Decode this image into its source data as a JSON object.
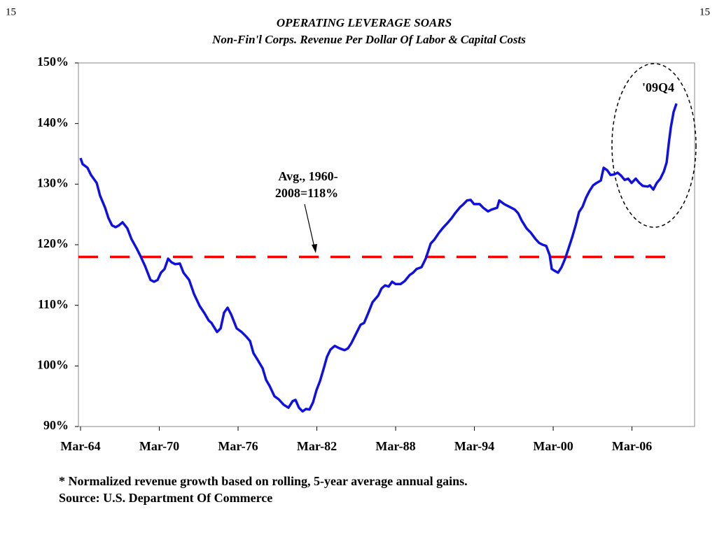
{
  "page_numbers": [
    "15",
    "15"
  ],
  "chart_data": {
    "type": "line",
    "title": "OPERATING LEVERAGE SOARS",
    "subtitle": "Non-Fin'l Corps. Revenue Per Dollar Of Labor & Capital Costs",
    "xlim": [
      1963.84,
      2010.77
    ],
    "ylim": [
      90,
      150
    ],
    "xticks": [
      {
        "value": 1964,
        "label": "Mar-64"
      },
      {
        "value": 1970,
        "label": "Mar-70"
      },
      {
        "value": 1976,
        "label": "Mar-76"
      },
      {
        "value": 1982,
        "label": "Mar-82"
      },
      {
        "value": 1988,
        "label": "Mar-88"
      },
      {
        "value": 1994,
        "label": "Mar-94"
      },
      {
        "value": 2000,
        "label": "Mar-00"
      },
      {
        "value": 2006,
        "label": "Mar-06"
      }
    ],
    "yticks": [
      {
        "value": 90,
        "label": "90%"
      },
      {
        "value": 100,
        "label": "100%"
      },
      {
        "value": 110,
        "label": "110%"
      },
      {
        "value": 120,
        "label": "120%"
      },
      {
        "value": 130,
        "label": "130%"
      },
      {
        "value": 140,
        "label": "140%"
      },
      {
        "value": 150,
        "label": "150%"
      }
    ],
    "series": [
      {
        "color": "#1010e0",
        "x": [
          1964.0,
          1964.16,
          1964.53,
          1964.8,
          1965.23,
          1965.49,
          1965.87,
          1966.13,
          1966.4,
          1966.67,
          1966.93,
          1967.2,
          1967.57,
          1967.89,
          1968.27,
          1968.53,
          1968.91,
          1969.33,
          1969.6,
          1969.87,
          1970.13,
          1970.4,
          1970.67,
          1970.93,
          1971.2,
          1971.57,
          1971.84,
          1972.27,
          1972.64,
          1973.07,
          1973.44,
          1973.76,
          1973.97,
          1974.4,
          1974.67,
          1974.93,
          1975.2,
          1975.47,
          1975.89,
          1976.27,
          1976.64,
          1976.91,
          1977.17,
          1977.49,
          1977.87,
          1978.13,
          1978.4,
          1978.77,
          1979.09,
          1979.47,
          1979.84,
          1980.16,
          1980.37,
          1980.64,
          1980.91,
          1981.17,
          1981.44,
          1981.71,
          1981.97,
          1982.24,
          1982.51,
          1982.77,
          1983.04,
          1983.36,
          1983.73,
          1984.11,
          1984.37,
          1984.64,
          1984.96,
          1985.33,
          1985.6,
          1985.87,
          1986.24,
          1986.67,
          1986.93,
          1987.2,
          1987.47,
          1987.73,
          1988.0,
          1988.37,
          1988.69,
          1989.07,
          1989.33,
          1989.6,
          1989.97,
          1990.29,
          1990.67,
          1990.93,
          1991.31,
          1991.57,
          1992.0,
          1992.27,
          1992.53,
          1992.91,
          1993.17,
          1993.44,
          1993.71,
          1993.97,
          1994.4,
          1994.67,
          1995.04,
          1995.31,
          1995.73,
          1995.89,
          1996.27,
          1996.64,
          1997.07,
          1997.33,
          1997.6,
          1997.97,
          1998.29,
          1998.67,
          1998.93,
          1999.2,
          1999.47,
          1999.73,
          1999.89,
          2000.11,
          2000.37,
          2000.64,
          2000.91,
          2001.17,
          2001.44,
          2001.71,
          2001.97,
          2002.24,
          2002.51,
          2002.77,
          2003.04,
          2003.31,
          2003.63,
          2003.84,
          2004.11,
          2004.37,
          2004.64,
          2004.91,
          2005.17,
          2005.44,
          2005.71,
          2005.97,
          2006.29,
          2006.56,
          2006.83,
          2007.2,
          2007.36,
          2007.63,
          2007.89,
          2008.16,
          2008.43,
          2008.64,
          2008.8,
          2008.96,
          2009.17,
          2009.39
        ],
        "values": [
          134.3,
          133.3,
          132.7,
          131.5,
          130.2,
          128.1,
          126.1,
          124.4,
          123.2,
          122.9,
          123.2,
          123.7,
          122.7,
          120.9,
          119.4,
          118.3,
          116.5,
          114.2,
          113.9,
          114.2,
          115.4,
          116.0,
          117.7,
          117.1,
          116.8,
          116.9,
          115.4,
          114.2,
          111.9,
          109.9,
          108.7,
          107.5,
          107.1,
          105.6,
          106.2,
          108.8,
          109.6,
          108.5,
          106.2,
          105.6,
          104.8,
          104.1,
          102.1,
          101.0,
          99.6,
          97.7,
          96.7,
          95.0,
          94.5,
          93.6,
          93.1,
          94.2,
          94.4,
          93.1,
          92.5,
          92.9,
          92.8,
          94.0,
          96.0,
          97.5,
          99.5,
          101.5,
          102.7,
          103.3,
          102.9,
          102.6,
          102.9,
          103.8,
          105.2,
          106.8,
          107.1,
          108.5,
          110.5,
          111.6,
          112.8,
          113.3,
          113.1,
          113.9,
          113.5,
          113.5,
          114.0,
          115.0,
          115.4,
          116.0,
          116.3,
          117.7,
          120.2,
          120.8,
          122.0,
          122.7,
          123.7,
          124.4,
          125.2,
          126.2,
          126.7,
          127.3,
          127.4,
          126.7,
          126.7,
          126.1,
          125.5,
          125.8,
          126.1,
          127.3,
          126.7,
          126.3,
          125.8,
          125.2,
          124.0,
          122.7,
          122.0,
          120.9,
          120.3,
          120.0,
          119.8,
          118.3,
          116.0,
          115.7,
          115.4,
          116.3,
          117.7,
          119.4,
          121.2,
          123.2,
          125.4,
          126.3,
          127.8,
          128.9,
          129.8,
          130.2,
          130.6,
          132.7,
          132.3,
          131.5,
          131.6,
          131.9,
          131.4,
          130.7,
          130.9,
          130.2,
          130.9,
          130.2,
          129.7,
          129.6,
          129.8,
          129.1,
          130.2,
          130.9,
          132.1,
          133.6,
          136.7,
          139.4,
          141.9,
          143.3
        ]
      }
    ],
    "reference_line": {
      "value": 118,
      "color": "#ff0000",
      "x": [
        1963.84,
        2008.8
      ]
    },
    "annotations": [
      "Avg., 1960-",
      "2008=118%",
      "'09Q4"
    ],
    "footnotes": [
      "* Normalized revenue growth based on rolling, 5-year average annual gains.",
      "Source: U.S. Department Of Commerce"
    ]
  }
}
